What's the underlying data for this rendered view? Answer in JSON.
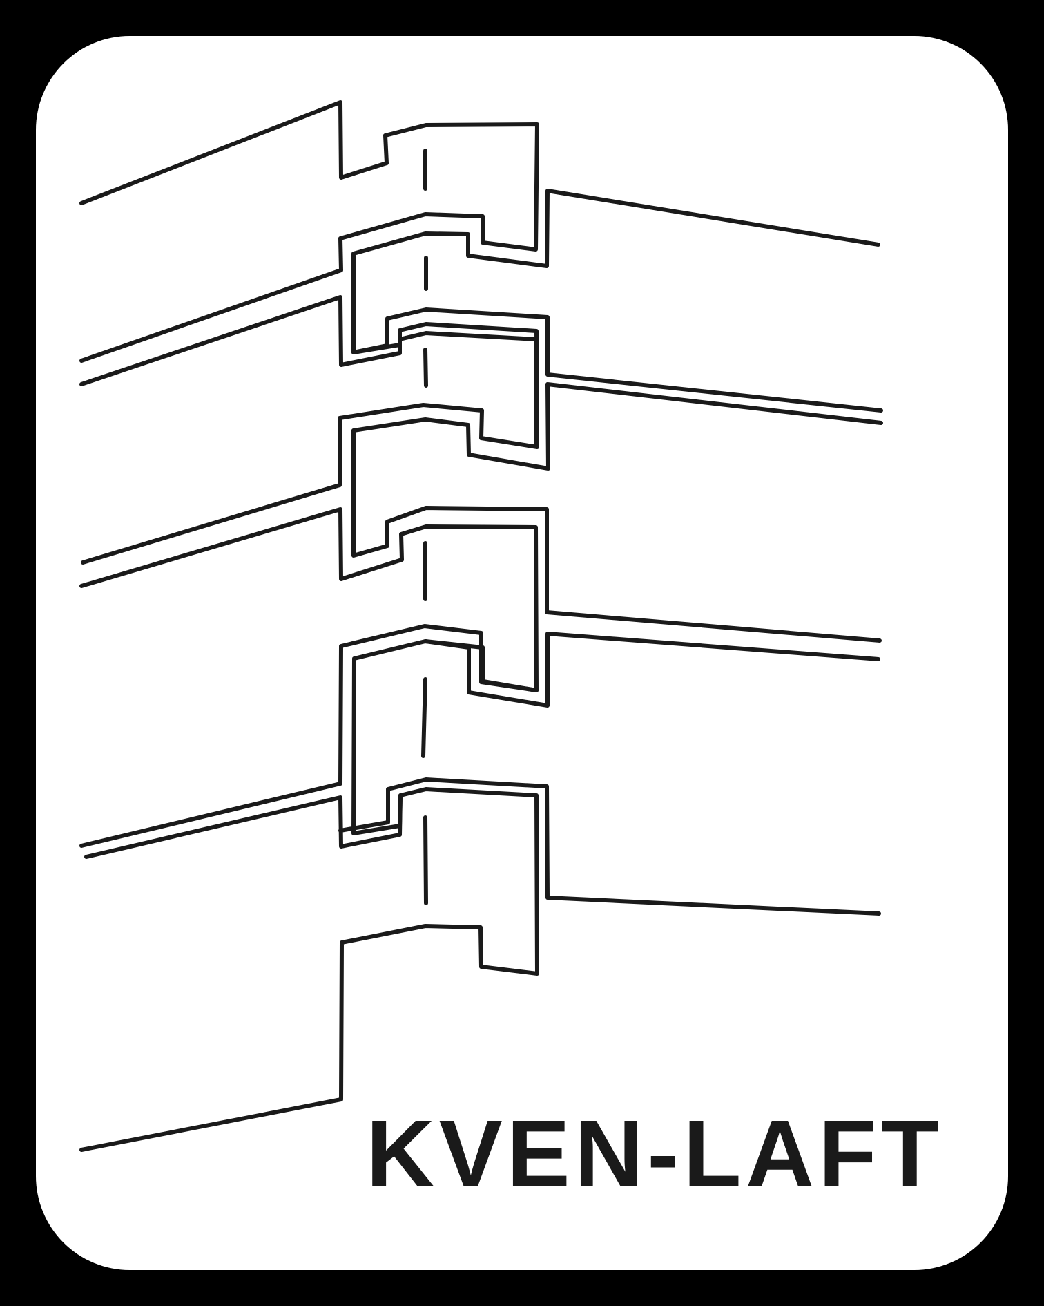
{
  "logo": {
    "text": "KVEN-LAFT",
    "ink_color": "#1a1a1a",
    "background_color": "#ffffff",
    "border_color": "#000000"
  }
}
